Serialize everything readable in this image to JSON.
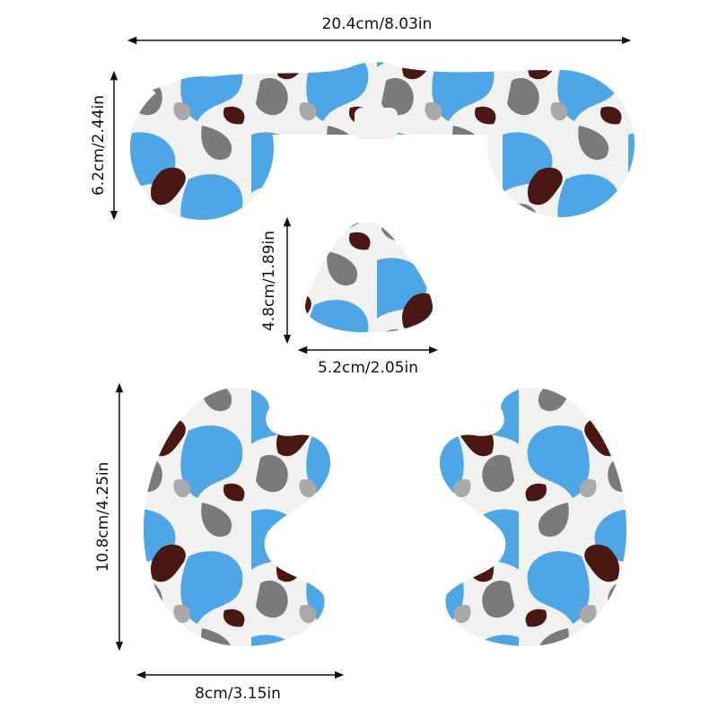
{
  "labels": {
    "top_width": "20.4cm/8.03in",
    "top_height": "6.2cm/2.44in",
    "nose_height": "4.8cm/1.89in",
    "nose_width": "5.2cm/2.05in",
    "side_height": "10.8cm/4.25in",
    "side_width": "8cm/3.15in"
  }
}
